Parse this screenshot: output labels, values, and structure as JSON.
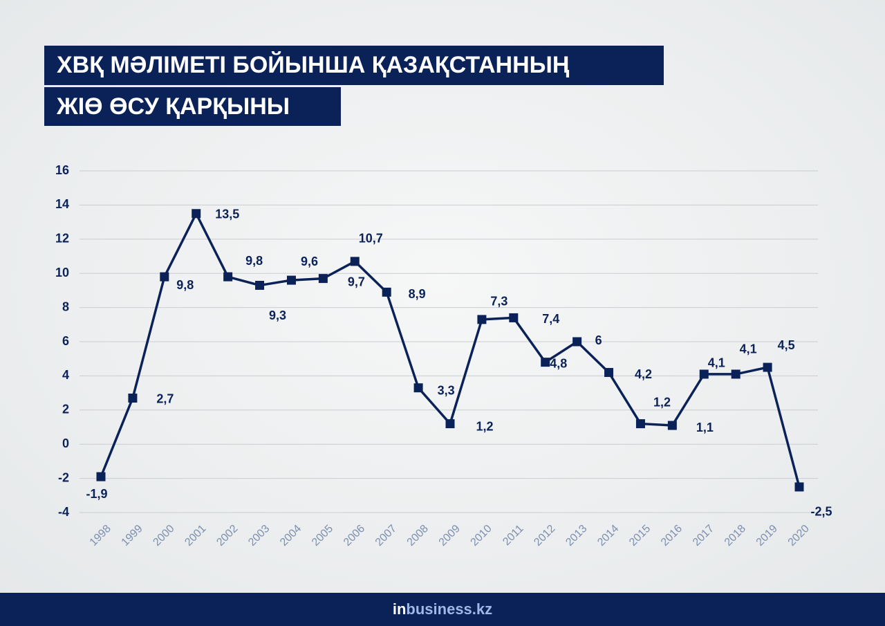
{
  "chart_data": {
    "type": "line",
    "title": [
      "ХВҚ МӘЛІМЕТІ БОЙЫНША ҚАЗАҚСТАННЫҢ",
      "ЖІӨ ӨСУ ҚАРҚЫНЫ"
    ],
    "categories": [
      "1998",
      "1999",
      "2000",
      "2001",
      "2002",
      "2003",
      "2004",
      "2005",
      "2006",
      "2007",
      "2008",
      "2009",
      "2010",
      "2011",
      "2012",
      "2013",
      "2014",
      "2015",
      "2016",
      "2017",
      "2018",
      "2019",
      "2020"
    ],
    "values": [
      -1.9,
      2.7,
      9.8,
      13.5,
      9.8,
      9.3,
      9.6,
      9.7,
      10.7,
      8.9,
      3.3,
      1.2,
      7.3,
      7.4,
      4.8,
      6,
      4.2,
      1.2,
      1.1,
      4.1,
      4.1,
      4.5,
      -2.5
    ],
    "value_labels": [
      "-1,9",
      "2,7",
      "9,8",
      "13,5",
      "9,8",
      "9,3",
      "9,6",
      "9,7",
      "10,7",
      "8,9",
      "3,3",
      "1,2",
      "7,3",
      "7,4",
      "4,8",
      "6",
      "4,2",
      "1,2",
      "1,1",
      "4,1",
      "4,1",
      "4,5",
      "-2,5"
    ],
    "color": "#0b2258",
    "ylim": [
      -4,
      16
    ],
    "yticks": [
      -4,
      -2,
      0,
      2,
      4,
      6,
      8,
      10,
      12,
      14,
      16
    ],
    "grid": true
  },
  "footer": {
    "brand_prefix": "in",
    "brand": "business.kz"
  }
}
